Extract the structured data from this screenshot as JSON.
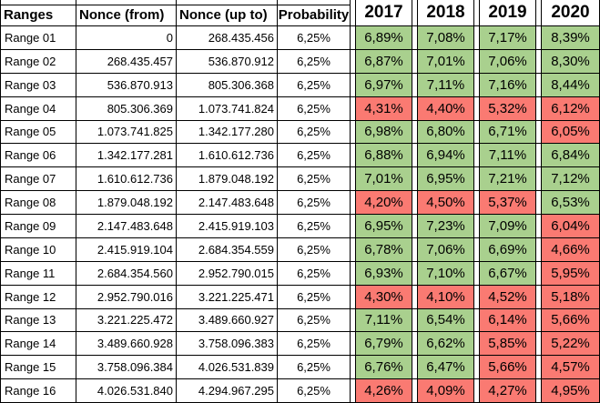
{
  "colors": {
    "good": "#A9D08E",
    "bad": "#FA7A72"
  },
  "table": {
    "columns": [
      "Ranges",
      "Nonce (from)",
      "Nonce (up to)",
      "Probability",
      "2017",
      "2018",
      "2019",
      "2020"
    ],
    "rows": [
      {
        "range": "Range 01",
        "from": "0",
        "to": "268.435.456",
        "probability": "6,25%",
        "years": [
          {
            "value": "6,89%",
            "status": "good"
          },
          {
            "value": "7,08%",
            "status": "good"
          },
          {
            "value": "7,17%",
            "status": "good"
          },
          {
            "value": "8,39%",
            "status": "good"
          }
        ]
      },
      {
        "range": "Range 02",
        "from": "268.435.457",
        "to": "536.870.912",
        "probability": "6,25%",
        "years": [
          {
            "value": "6,87%",
            "status": "good"
          },
          {
            "value": "7,01%",
            "status": "good"
          },
          {
            "value": "7,06%",
            "status": "good"
          },
          {
            "value": "8,30%",
            "status": "good"
          }
        ]
      },
      {
        "range": "Range 03",
        "from": "536.870.913",
        "to": "805.306.368",
        "probability": "6,25%",
        "years": [
          {
            "value": "6,97%",
            "status": "good"
          },
          {
            "value": "7,11%",
            "status": "good"
          },
          {
            "value": "7,16%",
            "status": "good"
          },
          {
            "value": "8,44%",
            "status": "good"
          }
        ]
      },
      {
        "range": "Range 04",
        "from": "805.306.369",
        "to": "1.073.741.824",
        "probability": "6,25%",
        "years": [
          {
            "value": "4,31%",
            "status": "bad"
          },
          {
            "value": "4,40%",
            "status": "bad"
          },
          {
            "value": "5,32%",
            "status": "bad"
          },
          {
            "value": "6,12%",
            "status": "bad"
          }
        ]
      },
      {
        "range": "Range 05",
        "from": "1.073.741.825",
        "to": "1.342.177.280",
        "probability": "6,25%",
        "years": [
          {
            "value": "6,98%",
            "status": "good"
          },
          {
            "value": "6,80%",
            "status": "good"
          },
          {
            "value": "6,71%",
            "status": "good"
          },
          {
            "value": "6,05%",
            "status": "bad"
          }
        ]
      },
      {
        "range": "Range 06",
        "from": "1.342.177.281",
        "to": "1.610.612.736",
        "probability": "6,25%",
        "years": [
          {
            "value": "6,88%",
            "status": "good"
          },
          {
            "value": "6,94%",
            "status": "good"
          },
          {
            "value": "7,11%",
            "status": "good"
          },
          {
            "value": "6,84%",
            "status": "good"
          }
        ]
      },
      {
        "range": "Range 07",
        "from": "1.610.612.736",
        "to": "1.879.048.192",
        "probability": "6,25%",
        "years": [
          {
            "value": "7,01%",
            "status": "good"
          },
          {
            "value": "6,95%",
            "status": "good"
          },
          {
            "value": "7,21%",
            "status": "good"
          },
          {
            "value": "7,12%",
            "status": "good"
          }
        ]
      },
      {
        "range": "Range 08",
        "from": "1.879.048.192",
        "to": "2.147.483.648",
        "probability": "6,25%",
        "years": [
          {
            "value": "4,20%",
            "status": "bad"
          },
          {
            "value": "4,50%",
            "status": "bad"
          },
          {
            "value": "5,37%",
            "status": "bad"
          },
          {
            "value": "6,53%",
            "status": "good"
          }
        ]
      },
      {
        "range": "Range 09",
        "from": "2.147.483.648",
        "to": "2.415.919.103",
        "probability": "6,25%",
        "years": [
          {
            "value": "6,95%",
            "status": "good"
          },
          {
            "value": "7,23%",
            "status": "good"
          },
          {
            "value": "7,09%",
            "status": "good"
          },
          {
            "value": "6,04%",
            "status": "bad"
          }
        ]
      },
      {
        "range": "Range 10",
        "from": "2.415.919.104",
        "to": "2.684.354.559",
        "probability": "6,25%",
        "years": [
          {
            "value": "6,78%",
            "status": "good"
          },
          {
            "value": "7,06%",
            "status": "good"
          },
          {
            "value": "6,69%",
            "status": "good"
          },
          {
            "value": "4,66%",
            "status": "bad"
          }
        ]
      },
      {
        "range": "Range 11",
        "from": "2.684.354.560",
        "to": "2.952.790.015",
        "probability": "6,25%",
        "years": [
          {
            "value": "6,93%",
            "status": "good"
          },
          {
            "value": "7,10%",
            "status": "good"
          },
          {
            "value": "6,67%",
            "status": "good"
          },
          {
            "value": "5,95%",
            "status": "bad"
          }
        ]
      },
      {
        "range": "Range 12",
        "from": "2.952.790.016",
        "to": "3.221.225.471",
        "probability": "6,25%",
        "years": [
          {
            "value": "4,30%",
            "status": "bad"
          },
          {
            "value": "4,10%",
            "status": "bad"
          },
          {
            "value": "4,52%",
            "status": "bad"
          },
          {
            "value": "5,18%",
            "status": "bad"
          }
        ]
      },
      {
        "range": "Range 13",
        "from": "3.221.225.472",
        "to": "3.489.660.927",
        "probability": "6,25%",
        "years": [
          {
            "value": "7,11%",
            "status": "good"
          },
          {
            "value": "6,54%",
            "status": "good"
          },
          {
            "value": "6,14%",
            "status": "bad"
          },
          {
            "value": "5,66%",
            "status": "bad"
          }
        ]
      },
      {
        "range": "Range 14",
        "from": "3.489.660.928",
        "to": "3.758.096.383",
        "probability": "6,25%",
        "years": [
          {
            "value": "6,79%",
            "status": "good"
          },
          {
            "value": "6,62%",
            "status": "good"
          },
          {
            "value": "5,85%",
            "status": "bad"
          },
          {
            "value": "5,22%",
            "status": "bad"
          }
        ]
      },
      {
        "range": "Range 15",
        "from": "3.758.096.384",
        "to": "4.026.531.839",
        "probability": "6,25%",
        "years": [
          {
            "value": "6,76%",
            "status": "good"
          },
          {
            "value": "6,47%",
            "status": "good"
          },
          {
            "value": "5,66%",
            "status": "bad"
          },
          {
            "value": "4,57%",
            "status": "bad"
          }
        ]
      },
      {
        "range": "Range 16",
        "from": "4.026.531.840",
        "to": "4.294.967.295",
        "probability": "6,25%",
        "years": [
          {
            "value": "4,26%",
            "status": "bad"
          },
          {
            "value": "4,09%",
            "status": "bad"
          },
          {
            "value": "4,27%",
            "status": "bad"
          },
          {
            "value": "4,95%",
            "status": "bad"
          }
        ]
      }
    ]
  }
}
